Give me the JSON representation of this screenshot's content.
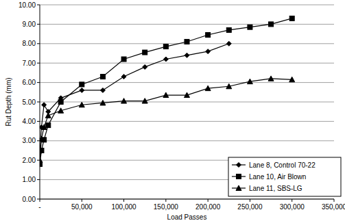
{
  "chart_data": {
    "type": "line",
    "x_label": "Load Passes",
    "y_label": "Rut Depth (mm)",
    "x": [
      0,
      2000,
      5000,
      10000,
      25000,
      50000,
      75000,
      100000,
      125000,
      150000,
      175000,
      200000,
      225000,
      250000,
      275000,
      300000
    ],
    "series": [
      {
        "name": "Lane 8, Control 70-22",
        "color": "#000000",
        "marker": "diamond",
        "line_style": "solid",
        "values": [
          2.4,
          3.7,
          4.85,
          4.5,
          5.2,
          5.6,
          5.6,
          6.3,
          6.8,
          7.2,
          7.4,
          7.6,
          8.0,
          null,
          null,
          null
        ]
      },
      {
        "name": "Lane 10, Air Blown",
        "color": "#000000",
        "marker": "square",
        "line_style": "solid",
        "values": [
          1.8,
          2.5,
          3.05,
          3.8,
          5.0,
          5.9,
          6.3,
          7.2,
          7.55,
          7.85,
          8.1,
          8.45,
          8.7,
          8.85,
          9.0,
          9.3
        ]
      },
      {
        "name": "Lane 11, SBS-LG",
        "color": "#000000",
        "marker": "triangle",
        "line_style": "solid",
        "values": [
          2.0,
          3.1,
          3.7,
          4.3,
          4.55,
          4.85,
          4.95,
          5.05,
          5.05,
          5.35,
          5.35,
          5.7,
          5.8,
          6.05,
          6.2,
          6.15
        ]
      }
    ],
    "xlim": [
      0,
      350000
    ],
    "xticks": [
      {
        "value": 0,
        "label": "-"
      },
      {
        "value": 50000,
        "label": "50,000"
      },
      {
        "value": 100000,
        "label": "100,000"
      },
      {
        "value": 150000,
        "label": "150,000"
      },
      {
        "value": 200000,
        "label": "200,000"
      },
      {
        "value": 250000,
        "label": "250,000"
      },
      {
        "value": 300000,
        "label": "300,000"
      },
      {
        "value": 350000,
        "label": "350,000"
      }
    ],
    "ylim": [
      0,
      10
    ],
    "yticks": [
      {
        "value": 0,
        "label": "0.00"
      },
      {
        "value": 1,
        "label": "1.00"
      },
      {
        "value": 2,
        "label": "2.00"
      },
      {
        "value": 3,
        "label": "3.00"
      },
      {
        "value": 4,
        "label": "4.00"
      },
      {
        "value": 5,
        "label": "5.00"
      },
      {
        "value": 6,
        "label": "6.00"
      },
      {
        "value": 7,
        "label": "7.00"
      },
      {
        "value": 8,
        "label": "8.00"
      },
      {
        "value": 9,
        "label": "9.00"
      },
      {
        "value": 10,
        "label": "10.00"
      }
    ],
    "grid": true,
    "legend": "bottom-right"
  }
}
